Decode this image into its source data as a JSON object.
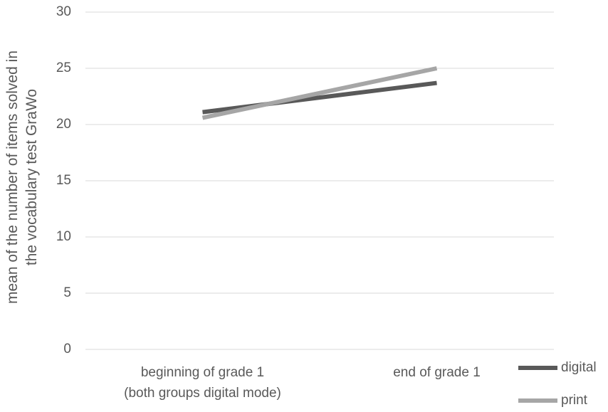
{
  "chart_data": {
    "type": "line",
    "ylabel": "mean of the number of items solved in\nthe vocabulary test GraWo",
    "categories": [
      "beginning of grade 1\n(both groups digital mode)",
      "end of grade 1"
    ],
    "series": [
      {
        "name": "digital",
        "color": "#595959",
        "values": [
          21.1,
          23.7
        ]
      },
      {
        "name": "print",
        "color": "#a6a6a6",
        "values": [
          20.6,
          25.0
        ]
      }
    ],
    "ylim": [
      0,
      30
    ],
    "yticks": [
      0,
      5,
      10,
      15,
      20,
      25,
      30
    ],
    "grid": true,
    "legend": "bottom-right"
  }
}
